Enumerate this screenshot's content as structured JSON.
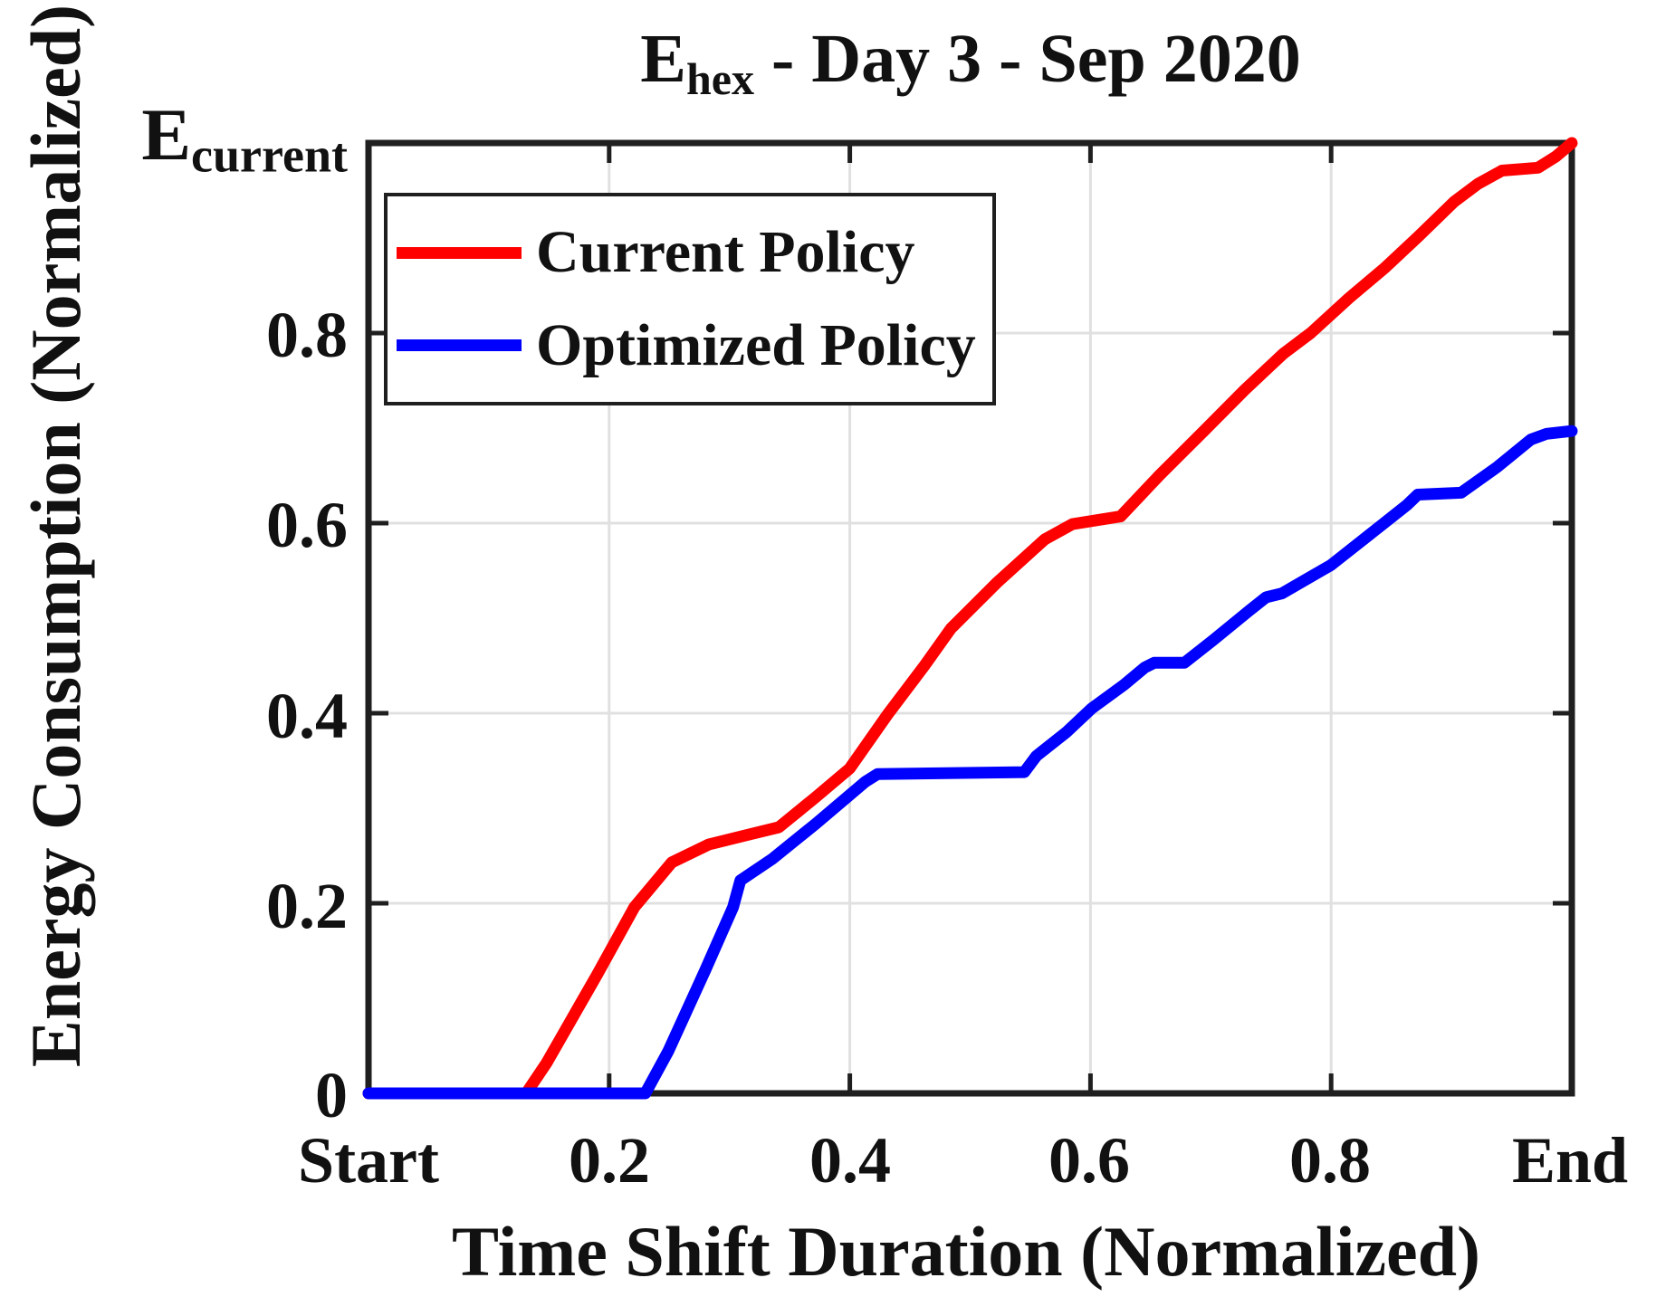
{
  "figure": {
    "background": "#ffffff"
  },
  "title": {
    "prefix": "E",
    "subscript": "hex",
    "rest": " - Day 3 - Sep 2020"
  },
  "axes": {
    "x_label": "Time Shift Duration (Normalized)",
    "y_label": "Energy Consumption (Normalized)",
    "x_tick_labels": [
      "Start",
      "0.2",
      "0.4",
      "0.6",
      "0.8",
      "End"
    ],
    "y_tick_labels": [
      "0",
      "0.2",
      "0.4",
      "0.6",
      "0.8"
    ],
    "y_top_label": {
      "prefix": "E",
      "subscript": "current"
    }
  },
  "legend": {
    "items": [
      {
        "label": "Current Policy",
        "color": "#ff0000"
      },
      {
        "label": "Optimized Policy",
        "color": "#0000ff"
      }
    ]
  },
  "colors": {
    "current_policy": "#ff0000",
    "optimized_policy": "#0000ff",
    "grid": "#e0e0e0",
    "axis": "#1f1f1f",
    "text": "#111111"
  },
  "chart_data": {
    "type": "line",
    "title": "E_hex - Day 3 - Sep 2020",
    "xlabel": "Time Shift Duration (Normalized)",
    "ylabel": "Energy Consumption (Normalized)",
    "xlim": [
      0,
      1
    ],
    "ylim": [
      0,
      1
    ],
    "grid": true,
    "legend_position": "northwest",
    "x_tick_values": [
      0,
      0.2,
      0.4,
      0.6,
      0.8,
      1
    ],
    "x_tick_labels": [
      "Start",
      "0.2",
      "0.4",
      "0.6",
      "0.8",
      "End"
    ],
    "y_tick_values": [
      0,
      0.2,
      0.4,
      0.6,
      0.8,
      1
    ],
    "y_tick_labels": [
      "0",
      "0.2",
      "0.4",
      "0.6",
      "0.8",
      "E_current"
    ],
    "series": [
      {
        "name": "Current Policy",
        "color": "#ff0000",
        "points": [
          [
            0.0,
            0.0
          ],
          [
            0.131,
            0.0
          ],
          [
            0.148,
            0.032
          ],
          [
            0.19,
            0.125
          ],
          [
            0.221,
            0.196
          ],
          [
            0.252,
            0.243
          ],
          [
            0.283,
            0.262
          ],
          [
            0.315,
            0.272
          ],
          [
            0.341,
            0.28
          ],
          [
            0.372,
            0.312
          ],
          [
            0.4,
            0.342
          ],
          [
            0.431,
            0.398
          ],
          [
            0.462,
            0.45
          ],
          [
            0.484,
            0.489
          ],
          [
            0.522,
            0.537
          ],
          [
            0.562,
            0.583
          ],
          [
            0.585,
            0.599
          ],
          [
            0.625,
            0.607
          ],
          [
            0.657,
            0.65
          ],
          [
            0.695,
            0.698
          ],
          [
            0.728,
            0.74
          ],
          [
            0.76,
            0.778
          ],
          [
            0.783,
            0.8
          ],
          [
            0.815,
            0.837
          ],
          [
            0.845,
            0.869
          ],
          [
            0.872,
            0.901
          ],
          [
            0.902,
            0.938
          ],
          [
            0.922,
            0.957
          ],
          [
            0.942,
            0.971
          ],
          [
            0.972,
            0.974
          ],
          [
            0.987,
            0.986
          ],
          [
            1.0,
            1.0
          ]
        ]
      },
      {
        "name": "Optimized Policy",
        "color": "#0000ff",
        "points": [
          [
            0.0,
            0.0
          ],
          [
            0.23,
            0.0
          ],
          [
            0.249,
            0.044
          ],
          [
            0.28,
            0.13
          ],
          [
            0.303,
            0.196
          ],
          [
            0.309,
            0.224
          ],
          [
            0.336,
            0.247
          ],
          [
            0.372,
            0.284
          ],
          [
            0.413,
            0.328
          ],
          [
            0.423,
            0.336
          ],
          [
            0.545,
            0.338
          ],
          [
            0.555,
            0.355
          ],
          [
            0.58,
            0.38
          ],
          [
            0.601,
            0.405
          ],
          [
            0.628,
            0.43
          ],
          [
            0.645,
            0.448
          ],
          [
            0.653,
            0.453
          ],
          [
            0.678,
            0.453
          ],
          [
            0.702,
            0.477
          ],
          [
            0.732,
            0.508
          ],
          [
            0.746,
            0.522
          ],
          [
            0.759,
            0.526
          ],
          [
            0.8,
            0.556
          ],
          [
            0.832,
            0.588
          ],
          [
            0.863,
            0.619
          ],
          [
            0.872,
            0.63
          ],
          [
            0.908,
            0.632
          ],
          [
            0.938,
            0.659
          ],
          [
            0.966,
            0.688
          ],
          [
            0.979,
            0.694
          ],
          [
            1.0,
            0.697
          ]
        ]
      }
    ]
  }
}
